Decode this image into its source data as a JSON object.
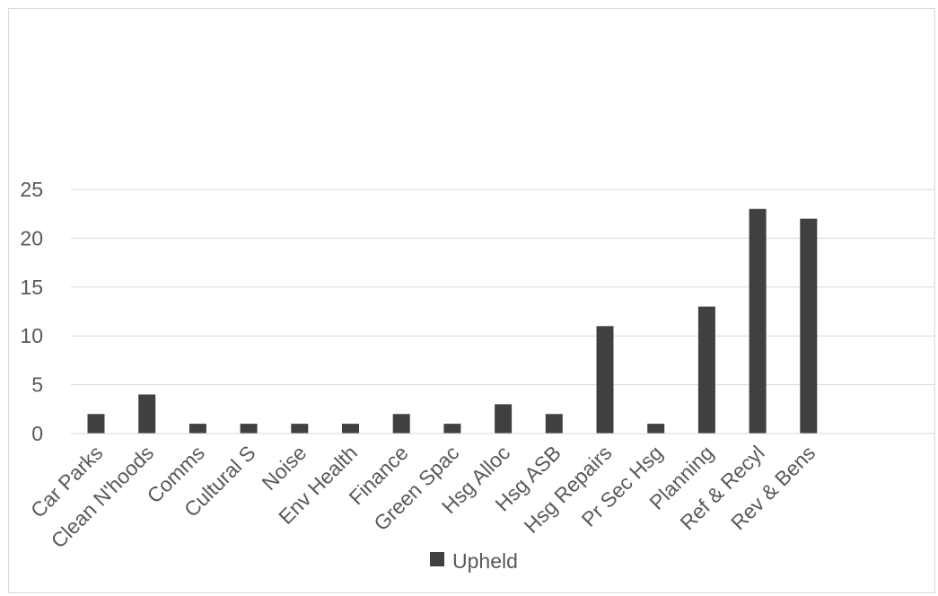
{
  "chart_data": {
    "type": "bar",
    "categories": [
      "Car Parks",
      "Clean N'hoods",
      "Comms",
      "Cultural S",
      "Noise",
      "Env Health",
      "Finance",
      "Green Spac",
      "Hsg Alloc",
      "Hsg ASB",
      "Hsg Repairs",
      "Pr Sec Hsg",
      "Planning",
      "Ref & Recyl",
      "Rev & Bens"
    ],
    "series": [
      {
        "name": "Upheld",
        "values": [
          2,
          4,
          1,
          1,
          1,
          1,
          2,
          1,
          3,
          2,
          11,
          1,
          13,
          23,
          22
        ],
        "color": "#404040"
      }
    ],
    "y_ticks": [
      "0",
      "5",
      "10",
      "15",
      "20",
      "25"
    ],
    "ylim": [
      0,
      25
    ],
    "grid": true,
    "legend_position": "bottom"
  }
}
